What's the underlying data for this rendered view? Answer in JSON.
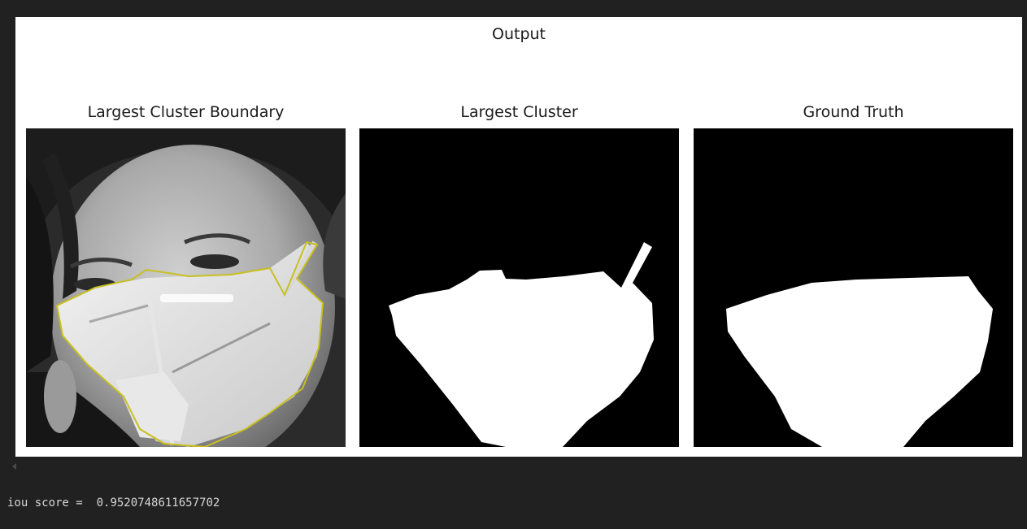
{
  "figure": {
    "title": "Output",
    "panels": [
      {
        "title": "Largest Cluster Boundary",
        "image": "grayscale-face-with-mask-boundary-image"
      },
      {
        "title": "Largest Cluster",
        "image": "binary-mask-image"
      },
      {
        "title": "Ground Truth",
        "image": "binary-mask-image"
      }
    ],
    "boundary_color": "#c8c020"
  },
  "console": {
    "label": "iou score = ",
    "value": "0.9520748611657702"
  }
}
